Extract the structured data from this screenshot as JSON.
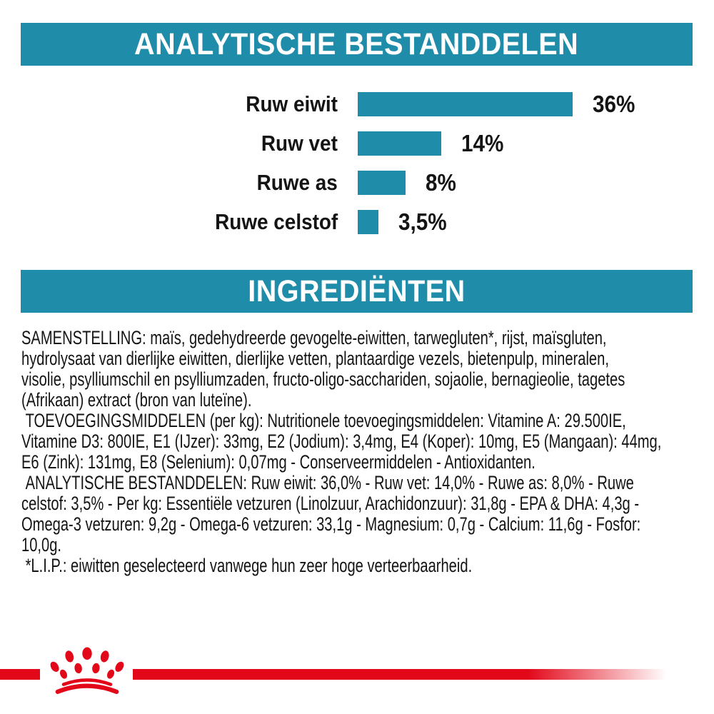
{
  "colors": {
    "teal": "#1f8caa",
    "red": "#e2081a",
    "text": "#141414",
    "header_text": "#ffffff"
  },
  "sections": {
    "analytical": {
      "title": "ANALYTISCHE BESTANDDELEN"
    },
    "ingredients": {
      "title": "INGREDIËNTEN"
    }
  },
  "chart_data": {
    "type": "bar",
    "orientation": "horizontal",
    "title": "ANALYTISCHE BESTANDDELEN",
    "categories": [
      "Ruw eiwit",
      "Ruw vet",
      "Ruwe as",
      "Ruwe celstof"
    ],
    "values": [
      36,
      14,
      8,
      3.5
    ],
    "value_labels": [
      "36%",
      "14%",
      "8%",
      "3,5%"
    ],
    "unit": "%",
    "xlim": [
      0,
      36
    ],
    "bar_color": "#1f8caa",
    "grid": false,
    "legend": false
  },
  "ingredients": {
    "text": "SAMENSTELLING: maïs, gedehydreerde gevogelte-eiwitten, tarwegluten*, rijst, maïsgluten,\nhydrolysaat van dierlijke eiwitten, dierlijke vetten, plantaardige vezels, bietenpulp, mineralen,\nvisolie, psylliumschil en psylliumzaden, fructo-oligo-sacchariden, sojaolie, bernagieolie, tagetes\n(Afrikaan) extract (bron van luteïne).\n TOEVOEGINGSMIDDELEN (per kg): Nutritionele toevoegingsmiddelen: Vitamine A: 29.500IE,\nVitamine D3: 800IE, E1 (IJzer): 33mg, E2 (Jodium): 3,4mg, E4 (Koper): 10mg, E5 (Mangaan): 44mg,\nE6 (Zink): 131mg, E8 (Selenium): 0,07mg - Conserveermiddelen - Antioxidanten.\n ANALYTISCHE BESTANDDELEN: Ruw eiwit: 36,0% - Ruw vet: 14,0% - Ruwe as: 8,0% - Ruwe\ncelstof: 3,5% - Per kg: Essentiële vetzuren (Linolzuur, Arachidonzuur): 31,8g - EPA & DHA: 4,3g -\nOmega-3 vetzuren: 9,2g - Omega-6 vetzuren: 33,1g - Magnesium: 0,7g - Calcium: 11,6g - Fosfor:\n10,0g.\n *L.I.P.: eiwitten geselecteerd vanwege hun zeer hoge verteerbaarheid."
  },
  "footer": {
    "logo_icon": "royal-canin-crown-icon"
  }
}
